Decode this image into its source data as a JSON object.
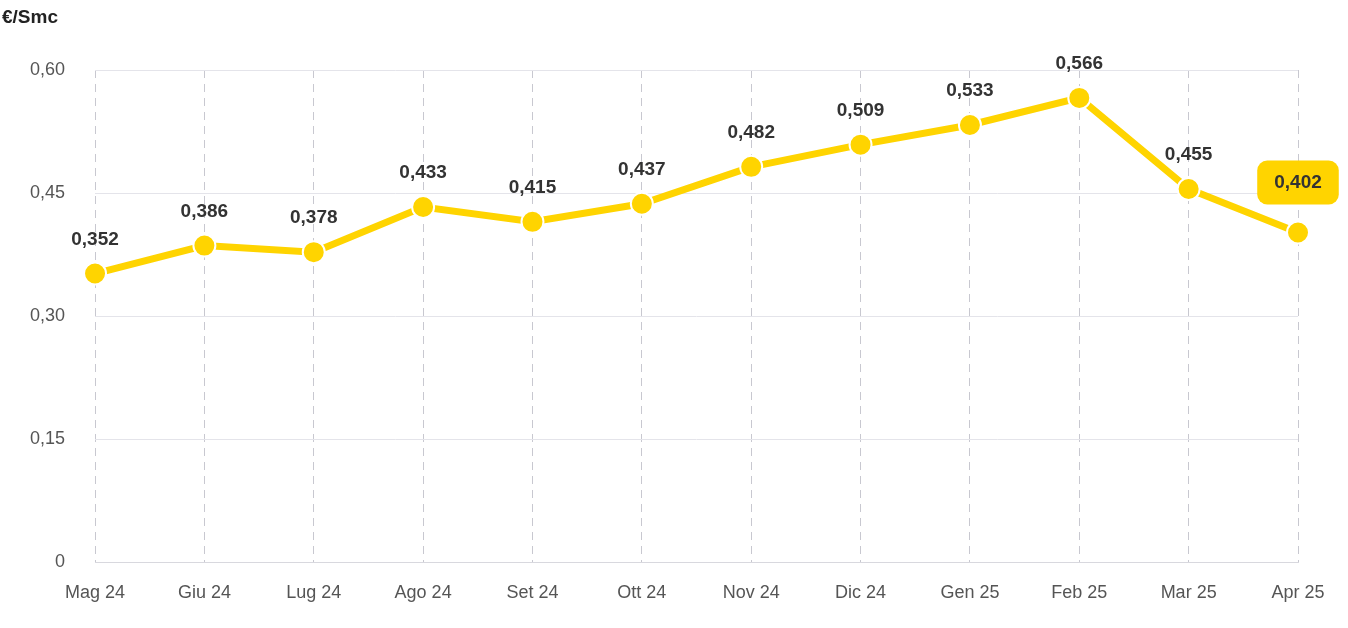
{
  "chart_data": {
    "type": "line",
    "ylabel": "€/Smc",
    "categories": [
      "Mag 24",
      "Giu 24",
      "Lug 24",
      "Ago 24",
      "Set 24",
      "Ott 24",
      "Nov 24",
      "Dic 24",
      "Gen 25",
      "Feb 25",
      "Mar 25",
      "Apr 25"
    ],
    "values": [
      0.352,
      0.386,
      0.378,
      0.433,
      0.415,
      0.437,
      0.482,
      0.509,
      0.533,
      0.566,
      0.455,
      0.402
    ],
    "value_labels": [
      "0,352",
      "0,386",
      "0,378",
      "0,433",
      "0,415",
      "0,437",
      "0,482",
      "0,509",
      "0,533",
      "0,566",
      "0,455",
      "0,402"
    ],
    "color": "#ffd400",
    "ylim": [
      0,
      0.6
    ],
    "yticks": [
      0,
      {
        "value": 0.15,
        "label": "0,15"
      },
      {
        "value": 0.3,
        "label": "0,30"
      },
      {
        "value": 0.45,
        "label": "0,45"
      },
      {
        "value": 0.6,
        "label": "0,60"
      }
    ],
    "grid": true,
    "data_labels": true,
    "marker": "circle"
  }
}
